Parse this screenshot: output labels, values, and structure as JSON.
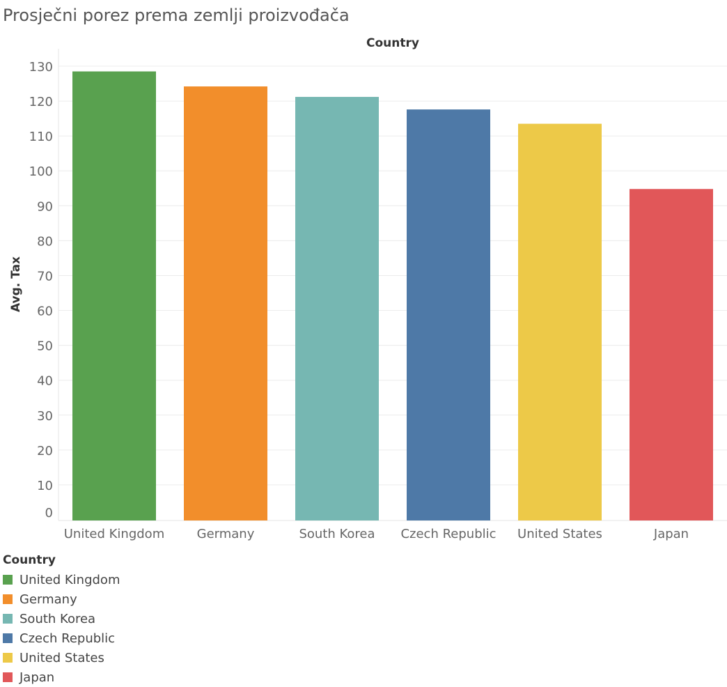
{
  "title": "Prosječni porez prema zemlji proizvođača",
  "chart_data": {
    "type": "bar",
    "column_header": "Country",
    "ylabel": "Avg. Tax",
    "categories": [
      "United Kingdom",
      "Germany",
      "South Korea",
      "Czech Republic",
      "United States",
      "Japan"
    ],
    "values": [
      128.5,
      124.2,
      121.2,
      117.6,
      113.5,
      94.8
    ],
    "colors": [
      "#59a14f",
      "#f28e2b",
      "#76b7b2",
      "#4e79a7",
      "#edc948",
      "#e15759"
    ],
    "ylim": [
      0,
      130
    ],
    "yticks": [
      0,
      10,
      20,
      30,
      40,
      50,
      60,
      70,
      80,
      90,
      100,
      110,
      120,
      130
    ],
    "grid": true
  },
  "legend": {
    "title": "Country",
    "items": [
      {
        "label": "United Kingdom",
        "color": "#59a14f"
      },
      {
        "label": "Germany",
        "color": "#f28e2b"
      },
      {
        "label": "South Korea",
        "color": "#76b7b2"
      },
      {
        "label": "Czech Republic",
        "color": "#4e79a7"
      },
      {
        "label": "United States",
        "color": "#edc948"
      },
      {
        "label": "Japan",
        "color": "#e15759"
      }
    ]
  }
}
